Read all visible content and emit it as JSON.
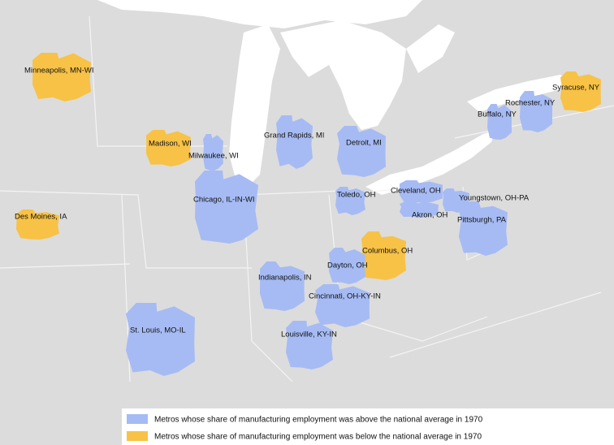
{
  "legend": [
    {
      "label": "Metros whose share of manufacturing employment was above the national average in 1970",
      "color": "#a6bbf4"
    },
    {
      "label": "Metros whose share of manufacturing employment was below the national average in 1970",
      "color": "#f7c246"
    }
  ],
  "metros": [
    {
      "name": "Minneapolis, MN-WI",
      "group": 1
    },
    {
      "name": "Madison, WI",
      "group": 1
    },
    {
      "name": "Milwaukee, WI",
      "group": 0
    },
    {
      "name": "Des Moines, IA",
      "group": 1
    },
    {
      "name": "Chicago, IL-IN-WI",
      "group": 0
    },
    {
      "name": "Grand Rapids, MI",
      "group": 0
    },
    {
      "name": "Detroit, MI",
      "group": 0
    },
    {
      "name": "Toledo, OH",
      "group": 0
    },
    {
      "name": "Cleveland, OH",
      "group": 0
    },
    {
      "name": "Akron, OH",
      "group": 0
    },
    {
      "name": "Youngstown, OH-PA",
      "group": 0
    },
    {
      "name": "Pittsburgh, PA",
      "group": 0
    },
    {
      "name": "Buffalo, NY",
      "group": 0
    },
    {
      "name": "Rochester, NY",
      "group": 0
    },
    {
      "name": "Syracuse, NY",
      "group": 1
    },
    {
      "name": "Columbus, OH",
      "group": 1
    },
    {
      "name": "Dayton, OH",
      "group": 0
    },
    {
      "name": "Indianapolis, IN",
      "group": 0
    },
    {
      "name": "Cincinnati, OH-KY-IN",
      "group": 0
    },
    {
      "name": "St. Louis, MO-IL",
      "group": 0
    },
    {
      "name": "Louisville, KY-IN",
      "group": 0
    }
  ]
}
